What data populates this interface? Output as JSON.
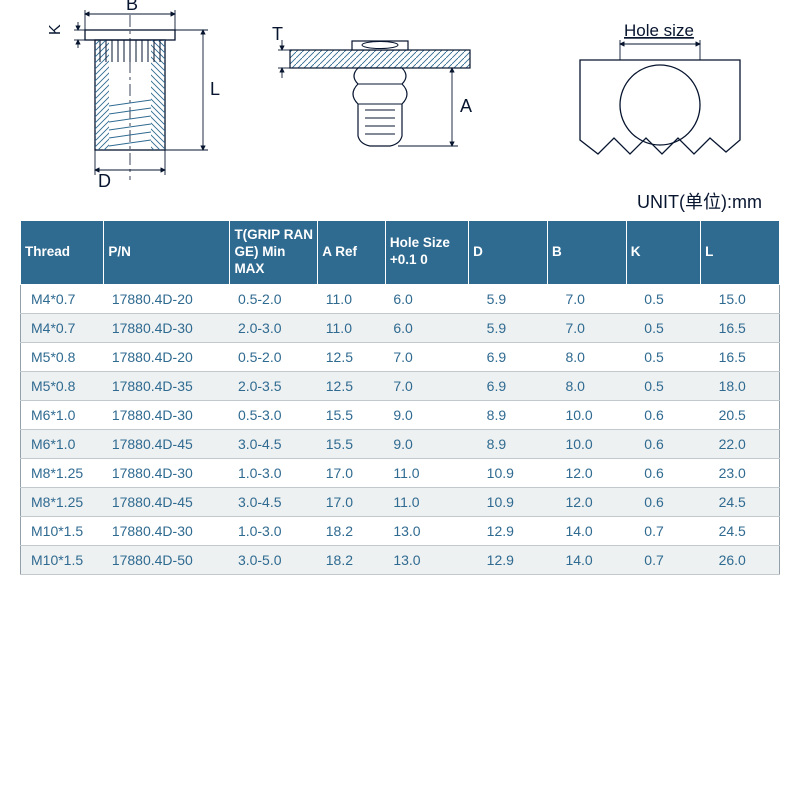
{
  "colors": {
    "header_bg": "#2f6a90",
    "header_text": "#ffffff",
    "cell_text": "#2f6a90",
    "row_even_bg": "#eef1f2",
    "row_odd_bg": "#ffffff",
    "border": "#c2c9cd",
    "diagram_stroke": "#07152f",
    "diagram_hatch": "#2f6a90"
  },
  "unit_label": "UNIT(单位):mm",
  "diagram_labels": {
    "B": "B",
    "K": "K",
    "L": "L",
    "D": "D",
    "T": "T",
    "A": "A",
    "hole": "Hole size"
  },
  "columns": [
    "Thread",
    "P/N",
    "T(GRIP RAN GE) Min MAX",
    "A Ref",
    "Hole Size +0.1 0",
    "D",
    "B",
    "K",
    "L"
  ],
  "rows": [
    [
      "M4*0.7",
      "17880.4D-20",
      "0.5-2.0",
      "11.0",
      "6.0",
      "5.9",
      "7.0",
      "0.5",
      "15.0"
    ],
    [
      "M4*0.7",
      "17880.4D-30",
      "2.0-3.0",
      "11.0",
      "6.0",
      "5.9",
      "7.0",
      "0.5",
      "16.5"
    ],
    [
      "M5*0.8",
      "17880.4D-20",
      "0.5-2.0",
      "12.5",
      "7.0",
      "6.9",
      "8.0",
      "0.5",
      "16.5"
    ],
    [
      "M5*0.8",
      "17880.4D-35",
      "2.0-3.5",
      "12.5",
      "7.0",
      "6.9",
      "8.0",
      "0.5",
      "18.0"
    ],
    [
      "M6*1.0",
      "17880.4D-30",
      "0.5-3.0",
      "15.5",
      "9.0",
      "8.9",
      "10.0",
      "0.6",
      "20.5"
    ],
    [
      "M6*1.0",
      "17880.4D-45",
      "3.0-4.5",
      "15.5",
      "9.0",
      "8.9",
      "10.0",
      "0.6",
      "22.0"
    ],
    [
      "M8*1.25",
      "17880.4D-30",
      "1.0-3.0",
      "17.0",
      "11.0",
      "10.9",
      "12.0",
      "0.6",
      "23.0"
    ],
    [
      "M8*1.25",
      "17880.4D-45",
      "3.0-4.5",
      "17.0",
      "11.0",
      "10.9",
      "12.0",
      "0.6",
      "24.5"
    ],
    [
      "M10*1.5",
      "17880.4D-30",
      "1.0-3.0",
      "18.2",
      "13.0",
      "12.9",
      "14.0",
      "0.7",
      "24.5"
    ],
    [
      "M10*1.5",
      "17880.4D-50",
      "3.0-5.0",
      "18.2",
      "13.0",
      "12.9",
      "14.0",
      "0.7",
      "26.0"
    ]
  ],
  "diagram_style": {
    "stroke_width": 1.3,
    "arrow_size": 5,
    "font_size": 18,
    "label_color": "#07152f"
  }
}
